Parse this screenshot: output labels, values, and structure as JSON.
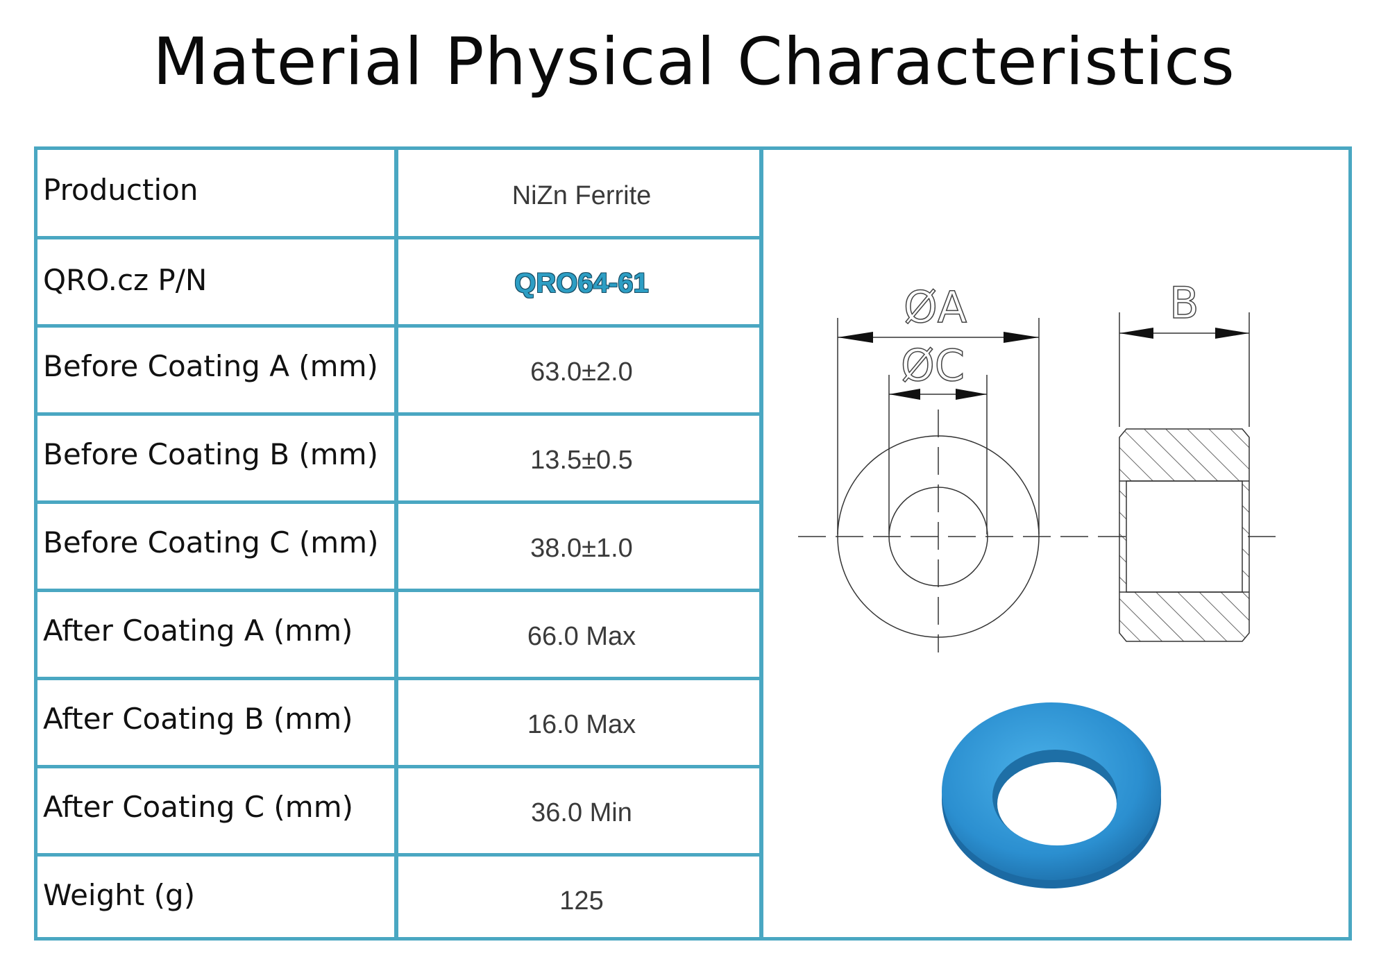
{
  "title": "Material Physical Characteristics",
  "accent_color": "#4aa7c2",
  "rows": [
    {
      "label": "Production",
      "value": "NiZn Ferrite"
    },
    {
      "label": "QRO.cz P/N",
      "value": "QRO64-61"
    },
    {
      "label": "Before Coating  A (mm)",
      "value": "63.0±2.0"
    },
    {
      "label": "Before Coating B (mm)",
      "value": "13.5±0.5"
    },
    {
      "label": "Before Coating C (mm)",
      "value": "38.0±1.0"
    },
    {
      "label": "After Coating A (mm)",
      "value": "66.0 Max"
    },
    {
      "label": "After Coating B (mm)",
      "value": "16.0 Max"
    },
    {
      "label": "After Coating C (mm)",
      "value": "36.0  Min"
    },
    {
      "label": "Weight (g)",
      "value": "125"
    }
  ],
  "drawing": {
    "dim_a": "ØA",
    "dim_c": "ØC",
    "dim_b": "B"
  },
  "product_photo": {
    "icon": "blue-toroid-core",
    "color": "#2f8fd0"
  }
}
